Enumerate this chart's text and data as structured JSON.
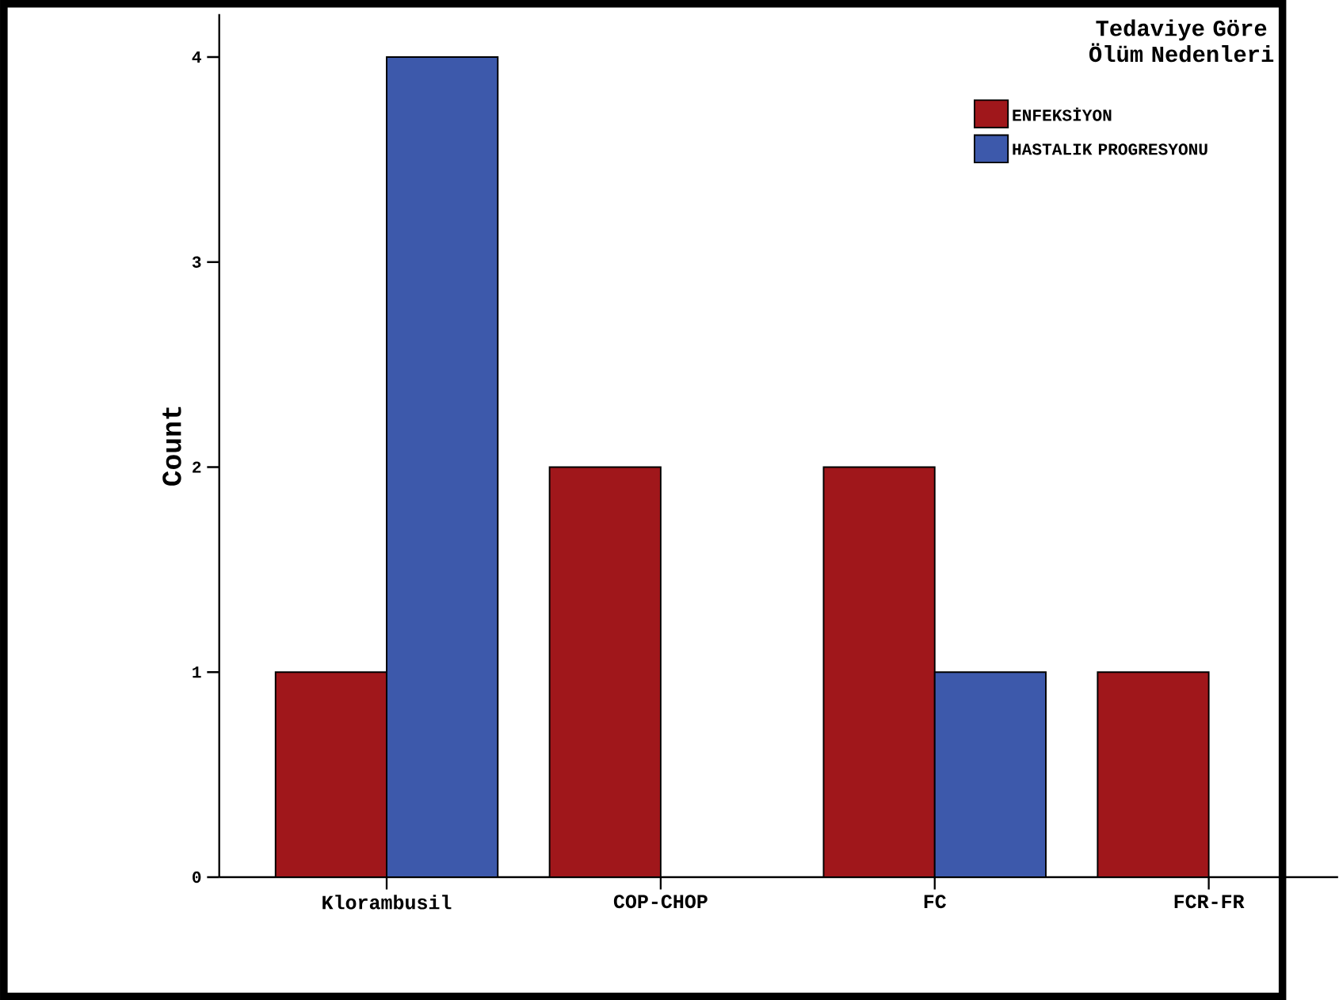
{
  "chart_data": {
    "type": "bar",
    "ylabel": "Count",
    "legend_title": "Tedaviye Göre Ölüm Nedenleri",
    "categories": [
      "Klorambusil",
      "COP-CHOP",
      "FC",
      "FCR-FR"
    ],
    "series": [
      {
        "name": "ENFEKSİYON",
        "color": "#a0171b",
        "values": [
          1,
          2,
          2,
          1
        ]
      },
      {
        "name": "HASTALIK PROGRESYONU",
        "color": "#3d59ab",
        "values": [
          4,
          null,
          1,
          null
        ]
      }
    ],
    "ylim": [
      0,
      4.21
    ],
    "yticks": [
      0,
      1,
      2,
      3,
      4
    ],
    "legend": "top right"
  }
}
